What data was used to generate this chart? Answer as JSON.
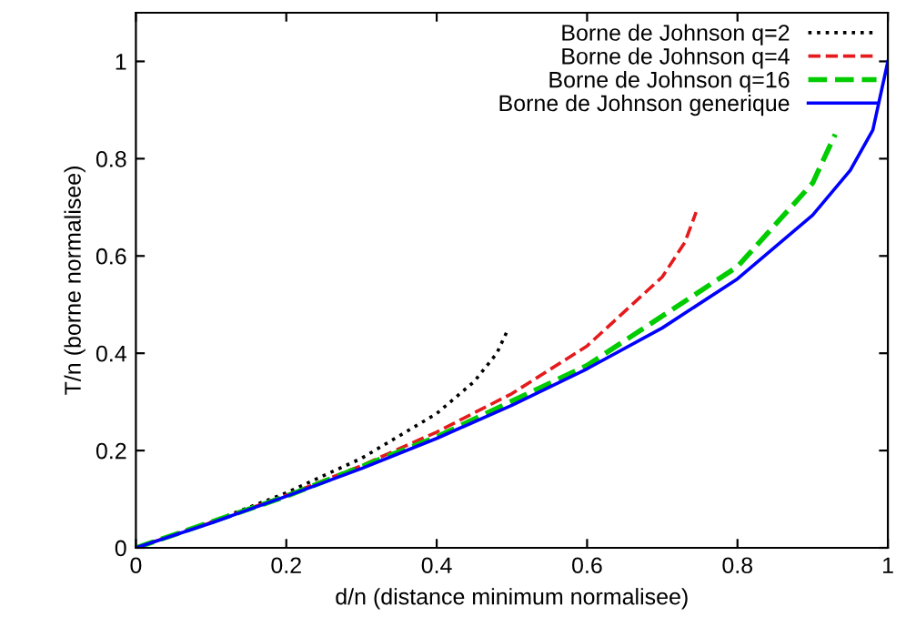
{
  "chart_data": {
    "type": "line",
    "xlabel": "d/n (distance minimum normalisee)",
    "ylabel": "T/n (borne normalisee)",
    "xlim": [
      0,
      1
    ],
    "ylim": [
      0,
      1.1
    ],
    "xticks": [
      0,
      0.2,
      0.4,
      0.6,
      0.8,
      1
    ],
    "yticks": [
      0,
      0.2,
      0.4,
      0.6,
      0.8,
      1
    ],
    "grid": false,
    "legend": "top right",
    "marker": "none",
    "series": [
      {
        "name": "Borne de Johnson q=2",
        "color": "#000000",
        "line_style": "dotted",
        "x": [
          0,
          0.1,
          0.2,
          0.3,
          0.4,
          0.45,
          0.48,
          0.495
        ],
        "values": [
          0,
          0.053,
          0.113,
          0.184,
          0.276,
          0.342,
          0.4,
          0.45
        ]
      },
      {
        "name": "Borne de Johnson q=4",
        "color": "#e41a1c",
        "line_style": "dashed",
        "x": [
          0,
          0.1,
          0.2,
          0.3,
          0.4,
          0.5,
          0.6,
          0.7,
          0.73,
          0.745
        ],
        "values": [
          0,
          0.052,
          0.108,
          0.169,
          0.238,
          0.317,
          0.415,
          0.557,
          0.628,
          0.69
        ]
      },
      {
        "name": "Borne de Johnson q=16",
        "color": "#00cc00",
        "line_style": "dashed",
        "x": [
          0,
          0.2,
          0.4,
          0.6,
          0.8,
          0.9,
          0.93
        ],
        "values": [
          0,
          0.106,
          0.228,
          0.375,
          0.578,
          0.75,
          0.85
        ]
      },
      {
        "name": "Borne de Johnson generique",
        "color": "#0000ff",
        "line_style": "solid",
        "x": [
          0,
          0.1,
          0.2,
          0.3,
          0.4,
          0.5,
          0.6,
          0.7,
          0.8,
          0.9,
          0.95,
          0.98,
          1
        ],
        "values": [
          0,
          0.051,
          0.106,
          0.163,
          0.225,
          0.293,
          0.368,
          0.452,
          0.553,
          0.684,
          0.776,
          0.859,
          1
        ]
      }
    ]
  }
}
